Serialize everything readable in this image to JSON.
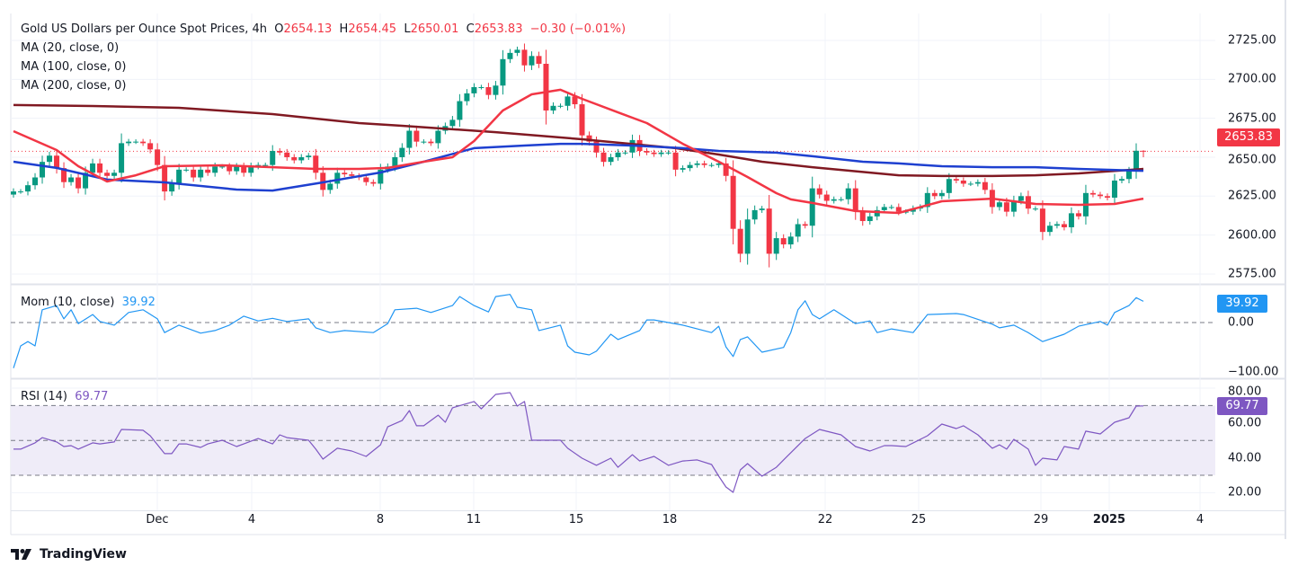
{
  "header": {
    "title": "Gold US Dollars per Ounce Spot Prices, 4h",
    "o_label": "O",
    "o": "2654.13",
    "h_label": "H",
    "h": "2654.45",
    "l_label": "L",
    "l": "2650.01",
    "c_label": "C",
    "c": "2653.83",
    "change": "−0.30 (−0.01%)"
  },
  "indicators": {
    "ma20": "MA (20, close, 0)",
    "ma100": "MA (100, close, 0)",
    "ma200": "MA (200, close, 0)",
    "mom_label": "Mom (10, close)",
    "mom_value": "39.92",
    "rsi_label": "RSI (14)",
    "rsi_value": "69.77"
  },
  "price_tag": "2653.83",
  "mom_tag": "39.92",
  "rsi_tag": "69.77",
  "brand": "TradingView",
  "colors": {
    "up": "#089981",
    "down": "#f23645",
    "ma20": "#f23645",
    "ma100": "#1e40d0",
    "ma200": "#801922",
    "mom": "#2196f3",
    "rsi": "#7e57c2",
    "rsi_band": "#efecf8"
  },
  "chart_data": {
    "type": "candlestick",
    "timeframe": "4h",
    "price_axis": {
      "ticks": [
        "2725.00",
        "2700.00",
        "2675.00",
        "2650.00",
        "2625.00",
        "2600.00",
        "2575.00"
      ],
      "range": [
        2570,
        2730
      ]
    },
    "x_ticks": [
      "Dec",
      "4",
      "8",
      "11",
      "15",
      "18",
      "22",
      "25",
      "29",
      "2025",
      "4"
    ],
    "closes": [
      2628,
      2628,
      2632,
      2637,
      2647,
      2651,
      2643,
      2634,
      2637,
      2630,
      2640,
      2646,
      2640,
      2638,
      2640,
      2659,
      2660,
      2660,
      2659,
      2655,
      2645,
      2628,
      2633,
      2642,
      2642,
      2637,
      2642,
      2640,
      2644,
      2644,
      2641,
      2644,
      2640,
      2644,
      2645,
      2645,
      2654,
      2653,
      2650,
      2648,
      2650,
      2651,
      2640,
      2629,
      2633,
      2640,
      2639,
      2638,
      2637,
      2634,
      2633,
      2642,
      2644,
      2650,
      2656,
      2667,
      2660,
      2660,
      2659,
      2667,
      2670,
      2674,
      2686,
      2691,
      2695,
      2695,
      2690,
      2696,
      2713,
      2717,
      2719,
      2709,
      2715,
      2710,
      2680,
      2683,
      2683,
      2689,
      2684,
      2664,
      2660,
      2653,
      2647,
      2650,
      2653,
      2653,
      2661,
      2654,
      2653,
      2652,
      2653,
      2653,
      2642,
      2643,
      2645,
      2646,
      2645,
      2645,
      2646,
      2638,
      2604,
      2588,
      2610,
      2616,
      2617,
      2588,
      2598,
      2594,
      2599,
      2607,
      2606,
      2630,
      2626,
      2622,
      2623,
      2623,
      2630,
      2615,
      2609,
      2612,
      2616,
      2618,
      2618,
      2615,
      2615,
      2617,
      2618,
      2627,
      2625,
      2627,
      2636,
      2635,
      2633,
      2633,
      2634,
      2629,
      2618,
      2621,
      2615,
      2622,
      2625,
      2617,
      2617,
      2602,
      2606,
      2607,
      2605,
      2614,
      2612,
      2627,
      2626,
      2625,
      2624,
      2635,
      2636,
      2641,
      2654.13,
      2653.83
    ],
    "last_candle": {
      "open": 2654.13,
      "high": 2654.45,
      "low": 2650.01,
      "close": 2653.83
    },
    "ma20": [
      [
        0,
        2666.7
      ],
      [
        6,
        2654.6
      ],
      [
        9,
        2644.2
      ],
      [
        13,
        2634.4
      ],
      [
        17,
        2638.4
      ],
      [
        21,
        2644.2
      ],
      [
        29,
        2644.8
      ],
      [
        36,
        2643.6
      ],
      [
        42,
        2642.5
      ],
      [
        48,
        2642.5
      ],
      [
        52,
        2643.1
      ],
      [
        57,
        2647.1
      ],
      [
        61,
        2650.0
      ],
      [
        64,
        2660.4
      ],
      [
        68,
        2680.0
      ],
      [
        72,
        2690.4
      ],
      [
        76,
        2693.3
      ],
      [
        79,
        2687.5
      ],
      [
        84,
        2678.8
      ],
      [
        88,
        2671.9
      ],
      [
        93,
        2658.6
      ],
      [
        98,
        2647.1
      ],
      [
        102,
        2637.3
      ],
      [
        106,
        2626.9
      ],
      [
        108,
        2622.9
      ],
      [
        111,
        2620.6
      ],
      [
        117,
        2615.4
      ],
      [
        123,
        2614.2
      ],
      [
        129,
        2621.7
      ],
      [
        136,
        2623.4
      ],
      [
        142,
        2620.0
      ],
      [
        148,
        2619.4
      ],
      [
        153,
        2620.0
      ],
      [
        157,
        2623.4
      ]
    ],
    "ma100": [
      [
        0,
        2647.1
      ],
      [
        6,
        2643.1
      ],
      [
        13,
        2635.6
      ],
      [
        21,
        2633.8
      ],
      [
        31,
        2629.2
      ],
      [
        36,
        2628.6
      ],
      [
        43,
        2633.8
      ],
      [
        51,
        2640.2
      ],
      [
        57,
        2647.1
      ],
      [
        64,
        2655.8
      ],
      [
        71,
        2657.5
      ],
      [
        76,
        2658.6
      ],
      [
        79,
        2658.6
      ],
      [
        86,
        2657.5
      ],
      [
        93,
        2655.8
      ],
      [
        98,
        2654.0
      ],
      [
        106,
        2652.9
      ],
      [
        111,
        2650.6
      ],
      [
        118,
        2647.1
      ],
      [
        123,
        2646.0
      ],
      [
        129,
        2644.2
      ],
      [
        136,
        2643.6
      ],
      [
        142,
        2643.6
      ],
      [
        148,
        2642.5
      ],
      [
        157,
        2641.3
      ]
    ],
    "ma200": [
      [
        0,
        2683.5
      ],
      [
        11,
        2682.9
      ],
      [
        23,
        2681.7
      ],
      [
        36,
        2677.7
      ],
      [
        48,
        2671.9
      ],
      [
        54,
        2670.2
      ],
      [
        67,
        2666.1
      ],
      [
        79,
        2661.5
      ],
      [
        92,
        2655.8
      ],
      [
        98,
        2651.7
      ],
      [
        104,
        2647.1
      ],
      [
        111,
        2643.6
      ],
      [
        123,
        2638.4
      ],
      [
        129,
        2637.9
      ],
      [
        136,
        2637.9
      ],
      [
        142,
        2638.4
      ],
      [
        148,
        2639.6
      ],
      [
        157,
        2642.5
      ]
    ],
    "momentum": {
      "axis": {
        "ticks": [
          "0.00",
          "−100.00"
        ],
        "values": [
          0,
          -100
        ]
      },
      "values": [
        [
          0,
          -86
        ],
        [
          1,
          -44
        ],
        [
          2,
          -36
        ],
        [
          3,
          -44
        ],
        [
          4,
          24
        ],
        [
          6,
          32
        ],
        [
          7,
          7
        ],
        [
          8,
          24
        ],
        [
          9,
          -2
        ],
        [
          11,
          15
        ],
        [
          12,
          2
        ],
        [
          14,
          -5
        ],
        [
          16,
          19
        ],
        [
          18,
          24
        ],
        [
          20,
          7
        ],
        [
          21,
          -19
        ],
        [
          23,
          -5
        ],
        [
          26,
          -20
        ],
        [
          28,
          -15
        ],
        [
          30,
          -5
        ],
        [
          32,
          12
        ],
        [
          34,
          3
        ],
        [
          36,
          8
        ],
        [
          38,
          2
        ],
        [
          41,
          7
        ],
        [
          42,
          -10
        ],
        [
          44,
          -19
        ],
        [
          46,
          -15
        ],
        [
          50,
          -19
        ],
        [
          52,
          -2
        ],
        [
          53,
          24
        ],
        [
          56,
          27
        ],
        [
          58,
          19
        ],
        [
          61,
          32
        ],
        [
          62,
          49
        ],
        [
          64,
          32
        ],
        [
          66,
          20
        ],
        [
          67,
          49
        ],
        [
          69,
          53
        ],
        [
          70,
          29
        ],
        [
          72,
          24
        ],
        [
          73,
          -15
        ],
        [
          76,
          -5
        ],
        [
          77,
          -44
        ],
        [
          78,
          -56
        ],
        [
          80,
          -61
        ],
        [
          81,
          -54
        ],
        [
          83,
          -22
        ],
        [
          84,
          -32
        ],
        [
          87,
          -15
        ],
        [
          88,
          5
        ],
        [
          89,
          5
        ],
        [
          93,
          -5
        ],
        [
          97,
          -19
        ],
        [
          98,
          -7
        ],
        [
          99,
          -46
        ],
        [
          100,
          -64
        ],
        [
          101,
          -32
        ],
        [
          102,
          -27
        ],
        [
          104,
          -56
        ],
        [
          107,
          -47
        ],
        [
          108,
          -19
        ],
        [
          109,
          24
        ],
        [
          110,
          41
        ],
        [
          111,
          15
        ],
        [
          112,
          7
        ],
        [
          114,
          24
        ],
        [
          117,
          -2
        ],
        [
          119,
          3
        ],
        [
          120,
          -19
        ],
        [
          122,
          -12
        ],
        [
          125,
          -19
        ],
        [
          127,
          15
        ],
        [
          131,
          17
        ],
        [
          132,
          15
        ],
        [
          136,
          -3
        ],
        [
          137,
          -10
        ],
        [
          139,
          -5
        ],
        [
          141,
          -19
        ],
        [
          143,
          -36
        ],
        [
          146,
          -22
        ],
        [
          148,
          -7
        ],
        [
          151,
          2
        ],
        [
          152,
          -5
        ],
        [
          153,
          19
        ],
        [
          155,
          32
        ],
        [
          156,
          47
        ],
        [
          157,
          39.92
        ]
      ]
    },
    "rsi": {
      "axis": {
        "ticks": [
          "80.00",
          "60.00",
          "40.00",
          "20.00"
        ],
        "values": [
          80,
          60,
          40,
          20
        ]
      },
      "bands": [
        70,
        50,
        30
      ],
      "values": [
        [
          0,
          45
        ],
        [
          1,
          45
        ],
        [
          3,
          48.6
        ],
        [
          4,
          51.6
        ],
        [
          6,
          49.1
        ],
        [
          7,
          46.5
        ],
        [
          8,
          47
        ],
        [
          9,
          45
        ],
        [
          11,
          48.6
        ],
        [
          12,
          48
        ],
        [
          14,
          49.1
        ],
        [
          15,
          56.3
        ],
        [
          18,
          55.8
        ],
        [
          19,
          52.7
        ],
        [
          21,
          42.4
        ],
        [
          22,
          42.4
        ],
        [
          23,
          48
        ],
        [
          24,
          48
        ],
        [
          26,
          46
        ],
        [
          27,
          48
        ],
        [
          29,
          50.1
        ],
        [
          31,
          46.5
        ],
        [
          32,
          48
        ],
        [
          34,
          51.1
        ],
        [
          36,
          48
        ],
        [
          37,
          53.2
        ],
        [
          38,
          51.6
        ],
        [
          41,
          50.1
        ],
        [
          42,
          45
        ],
        [
          43,
          39.3
        ],
        [
          45,
          45.5
        ],
        [
          47,
          43.9
        ],
        [
          49,
          40.8
        ],
        [
          51,
          47.5
        ],
        [
          52,
          57.8
        ],
        [
          54,
          61.4
        ],
        [
          55,
          67.1
        ],
        [
          56,
          58.4
        ],
        [
          57,
          58.4
        ],
        [
          59,
          64.5
        ],
        [
          60,
          60.4
        ],
        [
          61,
          68.7
        ],
        [
          64,
          72.3
        ],
        [
          65,
          68.1
        ],
        [
          66,
          72.3
        ],
        [
          67,
          76.4
        ],
        [
          69,
          77.4
        ],
        [
          70,
          69.7
        ],
        [
          71,
          72.3
        ],
        [
          72,
          50.1
        ],
        [
          74,
          50.1
        ],
        [
          76,
          50.1
        ],
        [
          77,
          45.5
        ],
        [
          79,
          39.8
        ],
        [
          81,
          35.7
        ],
        [
          83,
          39.8
        ],
        [
          84,
          34.6
        ],
        [
          86,
          41.8
        ],
        [
          87,
          38.2
        ],
        [
          89,
          40.8
        ],
        [
          91,
          35.7
        ],
        [
          93,
          38.2
        ],
        [
          95,
          38.8
        ],
        [
          97,
          36.2
        ],
        [
          98,
          29.5
        ],
        [
          99,
          23.3
        ],
        [
          100,
          20.2
        ],
        [
          101,
          33.1
        ],
        [
          102,
          36.7
        ],
        [
          104,
          29.5
        ],
        [
          106,
          34.6
        ],
        [
          107,
          38.8
        ],
        [
          110,
          51.1
        ],
        [
          112,
          56.3
        ],
        [
          115,
          53.2
        ],
        [
          117,
          46.5
        ],
        [
          119,
          43.9
        ],
        [
          121,
          47
        ],
        [
          122,
          47
        ],
        [
          124,
          46.5
        ],
        [
          127,
          52.7
        ],
        [
          129,
          59.4
        ],
        [
          131,
          56.8
        ],
        [
          132,
          58.4
        ],
        [
          134,
          53.2
        ],
        [
          136,
          45.5
        ],
        [
          137,
          47.5
        ],
        [
          138,
          45
        ],
        [
          139,
          50.6
        ],
        [
          141,
          45
        ],
        [
          142,
          35.7
        ],
        [
          143,
          39.8
        ],
        [
          145,
          38.8
        ],
        [
          146,
          46.5
        ],
        [
          148,
          45
        ],
        [
          149,
          55.3
        ],
        [
          151,
          53.7
        ],
        [
          153,
          60.4
        ],
        [
          155,
          63
        ],
        [
          156,
          69.7
        ],
        [
          157,
          69.77
        ]
      ]
    }
  }
}
